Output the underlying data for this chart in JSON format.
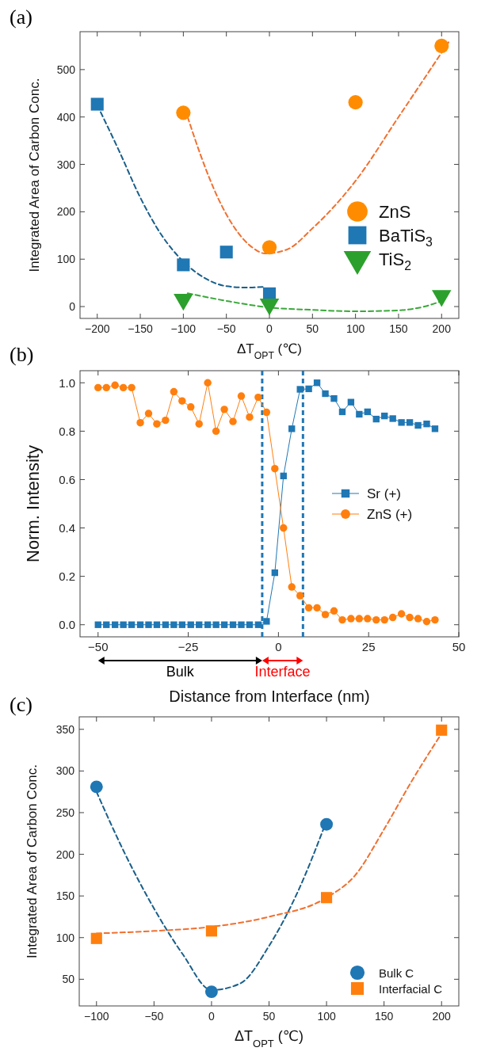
{
  "chart_data": [
    {
      "type": "scatter",
      "title": "(a)",
      "xlabel": "ΔT$_{OPT}$ (℃)",
      "ylabel": "Integrated Area of Carbon Conc.",
      "xlim": [
        -220,
        220
      ],
      "xticks": [
        {
          "value": -200,
          "label": "−200"
        },
        {
          "value": -150,
          "label": "−150"
        },
        {
          "value": -100,
          "label": "−100"
        },
        {
          "value": -50,
          "label": "−50"
        },
        0,
        50,
        100,
        150,
        200
      ],
      "ylim": [
        -25,
        580
      ],
      "yticks": [
        0,
        100,
        200,
        300,
        400,
        500
      ],
      "grid": false,
      "legend": "bottom right",
      "series": [
        {
          "type": "line",
          "color": "#f07030",
          "line_style": "dashed",
          "marker": "none",
          "x": [
            -95,
            -80,
            -60,
            -40,
            -20,
            -5,
            20,
            50,
            100,
            150,
            210
          ],
          "values": [
            400,
            320,
            230,
            165,
            125,
            112,
            120,
            165,
            265,
            400,
            563
          ]
        },
        {
          "type": "line",
          "color": "#1a5f8a",
          "line_style": "dashed",
          "marker": "none",
          "x": [
            -200,
            -175,
            -150,
            -125,
            -100,
            -75,
            -50,
            -25,
            -5
          ],
          "values": [
            425,
            330,
            230,
            150,
            95,
            60,
            43,
            40,
            42
          ]
        },
        {
          "type": "line",
          "color": "#3aa83a",
          "line_style": "dashed",
          "marker": "none",
          "x": [
            -95,
            -50,
            0,
            50,
            100,
            150,
            180,
            205
          ],
          "values": [
            28,
            12,
            -2,
            -7,
            -10,
            -8,
            0,
            15
          ]
        },
        {
          "name": "ZnS",
          "color": "#ff8c00",
          "marker": "circle",
          "x": [
            -100,
            0,
            100,
            200
          ],
          "values": [
            409,
            125,
            431,
            550
          ]
        },
        {
          "name": "BaTiS$_{3}$",
          "color": "#1f77b4",
          "marker": "square",
          "x": [
            -200,
            -100,
            -50,
            0
          ],
          "values": [
            427,
            88,
            115,
            27
          ]
        },
        {
          "name": "TiS$_{2}$",
          "color": "#2ca02c",
          "marker": "triangle",
          "x": [
            -100,
            0,
            200
          ],
          "values": [
            15,
            5,
            23
          ]
        }
      ]
    },
    {
      "type": "line",
      "title": "(b)",
      "xlabel": "Distance from Interface (nm)",
      "ylabel": "Norm. Intensity",
      "xlim": [
        -55,
        50
      ],
      "xticks": [
        {
          "value": -50,
          "label": "−50"
        },
        {
          "value": -25,
          "label": "−25"
        },
        0,
        25,
        50
      ],
      "ylim": [
        -0.05,
        1.05
      ],
      "yticks": [
        {
          "value": 0,
          "label": "0.0"
        },
        {
          "value": 0.2,
          "label": "0.2"
        },
        {
          "value": 0.4,
          "label": "0.4"
        },
        {
          "value": 0.6,
          "label": "0.6"
        },
        {
          "value": 0.8,
          "label": "0.8"
        },
        {
          "value": 1,
          "label": "1.0"
        }
      ],
      "grid": false,
      "legend": "right",
      "line_style": "solid",
      "x": [
        -50,
        -47.7,
        -45.3,
        -43.0,
        -40.7,
        -38.3,
        -36.0,
        -33.7,
        -31.3,
        -29.0,
        -26.7,
        -24.3,
        -22.0,
        -19.6,
        -17.3,
        -15.0,
        -12.6,
        -10.3,
        -8.0,
        -5.6,
        -3.3,
        -1.0,
        1.4,
        3.7,
        6.0,
        8.4,
        10.7,
        13.0,
        15.4,
        17.7,
        20.1,
        22.4,
        24.7,
        27.1,
        29.4,
        31.7,
        34.1,
        36.4,
        38.7,
        41.1,
        43.4
      ],
      "series": [
        {
          "name": "Sr (+)",
          "color": "#1f77b4",
          "marker": "square",
          "values": [
            0,
            0,
            0,
            0,
            0,
            0,
            0,
            0,
            0,
            0,
            0,
            0,
            0,
            0,
            0,
            0,
            0,
            0,
            0,
            0,
            0.014,
            0.215,
            0.615,
            0.81,
            0.973,
            0.975,
            1.0,
            0.955,
            0.935,
            0.88,
            0.92,
            0.87,
            0.88,
            0.85,
            0.863,
            0.852,
            0.836,
            0.836,
            0.824,
            0.83,
            0.81
          ]
        },
        {
          "name": "ZnS (+)",
          "color": "#ff7f0e",
          "marker": "circle",
          "values": [
            0.98,
            0.98,
            0.99,
            0.98,
            0.98,
            0.835,
            0.873,
            0.83,
            0.845,
            0.963,
            0.925,
            0.9,
            0.83,
            1.0,
            0.8,
            0.89,
            0.84,
            0.945,
            0.858,
            0.94,
            0.878,
            0.645,
            0.4,
            0.156,
            0.12,
            0.07,
            0.07,
            0.042,
            0.057,
            0.02,
            0.025,
            0.025,
            0.025,
            0.02,
            0.02,
            0.03,
            0.045,
            0.03,
            0.025,
            0.013,
            0.02
          ]
        }
      ],
      "ref_lines": [
        {
          "axis": "x",
          "value": -4.5,
          "color": "#1f77b4",
          "line_style": "dashed"
        },
        {
          "axis": "x",
          "value": 6.8,
          "color": "#1f77b4",
          "line_style": "dashed"
        }
      ],
      "annotations": [
        "Bulk",
        "Interface"
      ]
    },
    {
      "type": "scatter",
      "title": "(c)",
      "xlabel": "ΔT$_{OPT}$ (℃)",
      "ylabel": "Integrated Area of Carbon Conc.",
      "xlim": [
        -115,
        215
      ],
      "xticks": [
        {
          "value": -100,
          "label": "−100"
        },
        {
          "value": -50,
          "label": "−50"
        },
        0,
        50,
        100,
        150,
        200
      ],
      "ylim": [
        18,
        365
      ],
      "yticks": [
        50,
        100,
        150,
        200,
        250,
        300,
        350
      ],
      "grid": false,
      "legend": "bottom right",
      "series": [
        {
          "type": "line",
          "color": "#1a5f8a",
          "line_style": "dashed",
          "marker": "none",
          "x": [
            -100,
            -75,
            -50,
            -25,
            0,
            25,
            50,
            75,
            100
          ],
          "values": [
            275,
            200,
            135,
            80,
            37,
            45,
            90,
            155,
            240
          ]
        },
        {
          "type": "line",
          "color": "#f07030",
          "line_style": "dashed",
          "marker": "none",
          "x": [
            -100,
            -50,
            0,
            50,
            100,
            125,
            150,
            175,
            200
          ],
          "values": [
            105,
            108,
            113,
            125,
            148,
            175,
            230,
            290,
            345
          ]
        },
        {
          "name": "Bulk C",
          "color": "#1f77b4",
          "marker": "circle",
          "x": [
            -100,
            0,
            100
          ],
          "values": [
            281,
            35,
            236
          ]
        },
        {
          "name": "Interfacial C",
          "color": "#ff7f0e",
          "marker": "square",
          "x": [
            -100,
            0,
            100,
            200
          ],
          "values": [
            99,
            108,
            148,
            349
          ]
        }
      ]
    }
  ]
}
